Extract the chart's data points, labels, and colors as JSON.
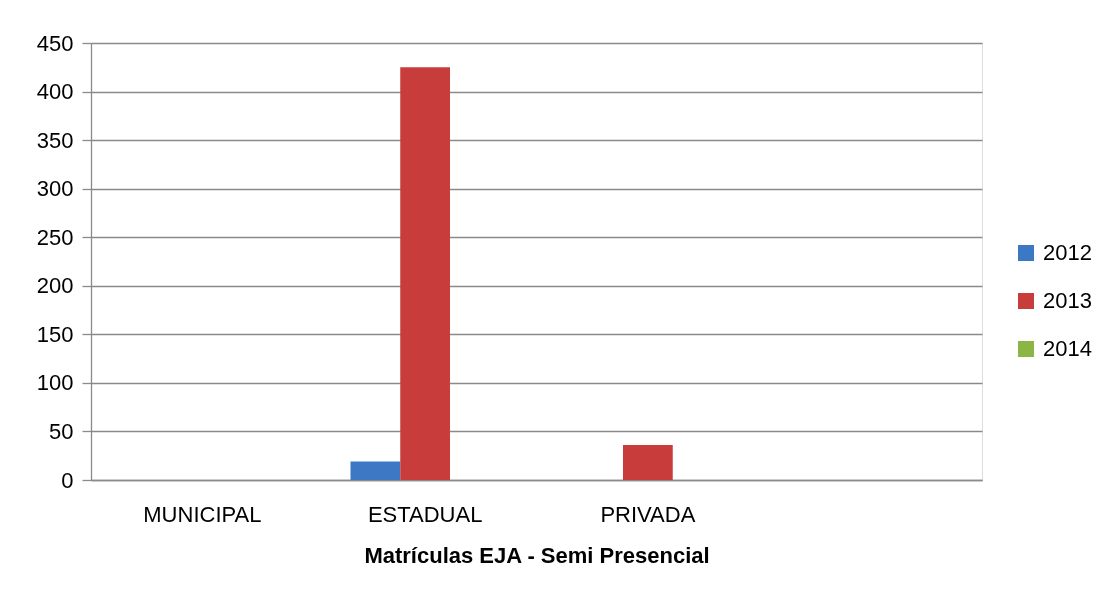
{
  "chart_data": {
    "type": "bar",
    "xlabel": "Matrículas EJA - Semi Presencial",
    "categories": [
      "MUNICIPAL",
      "ESTADUAL",
      "PRIVADA",
      null
    ],
    "series": [
      {
        "name": "2012",
        "color": "#3c78c4",
        "values": [
          null,
          19,
          null,
          null
        ]
      },
      {
        "name": "2013",
        "color": "#c83c3c",
        "values": [
          null,
          425,
          36,
          null
        ]
      },
      {
        "name": "2014",
        "color": "#8db543",
        "values": [
          null,
          null,
          null,
          null
        ]
      }
    ],
    "ylim": [
      0,
      450
    ],
    "yticks": [
      0,
      50,
      100,
      150,
      200,
      250,
      300,
      350,
      400,
      450
    ],
    "grid": "y",
    "legend": "right"
  }
}
